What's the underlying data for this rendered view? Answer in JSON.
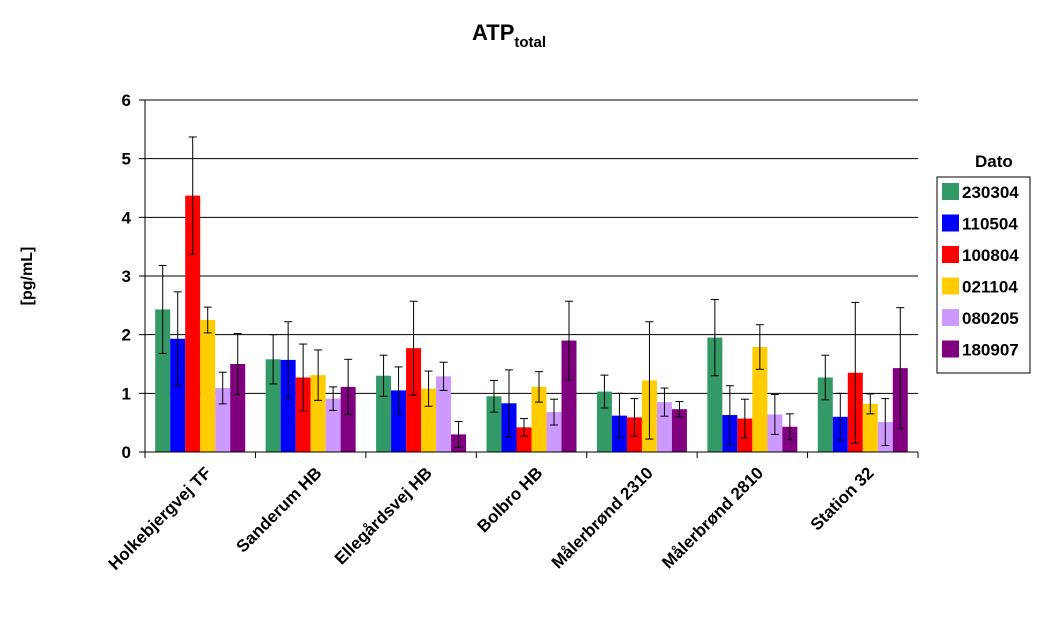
{
  "chart_data": {
    "type": "bar",
    "title": "ATP",
    "title_subscript": "total",
    "ylabel": "[pg/mL]",
    "xlabel": "",
    "ylim": [
      0,
      6
    ],
    "yticks": [
      "0",
      "1",
      "2",
      "3",
      "4",
      "5",
      "6"
    ],
    "grid": "horizontal",
    "legend_title": "Dato",
    "legend_position": "right",
    "error_bars": true,
    "categories": [
      "Holkebjergvej TF",
      "Sanderum HB",
      "Ellegårdsvej HB",
      "Bolbro HB",
      "Målerbrønd 2310",
      "Målerbrønd 2810",
      "Station 32"
    ],
    "series": [
      {
        "name": "230304",
        "color": "#339966",
        "values": [
          2.43,
          1.58,
          1.3,
          0.95,
          1.03,
          1.95,
          1.27
        ],
        "errors": [
          0.75,
          0.42,
          0.35,
          0.27,
          0.28,
          0.65,
          0.38
        ]
      },
      {
        "name": "110504",
        "color": "#0000ff",
        "values": [
          1.93,
          1.57,
          1.05,
          0.83,
          0.62,
          0.63,
          0.6
        ],
        "errors": [
          0.8,
          0.65,
          0.4,
          0.57,
          0.38,
          0.5,
          0.4
        ]
      },
      {
        "name": "100804",
        "color": "#ff0000",
        "values": [
          4.37,
          1.27,
          1.77,
          0.42,
          0.59,
          0.57,
          1.35
        ],
        "errors": [
          1.0,
          0.57,
          0.8,
          0.15,
          0.32,
          0.33,
          1.2
        ]
      },
      {
        "name": "021104",
        "color": "#ffcc00",
        "values": [
          2.25,
          1.31,
          1.08,
          1.11,
          1.22,
          1.79,
          0.82
        ],
        "errors": [
          0.22,
          0.43,
          0.3,
          0.26,
          1.0,
          0.38,
          0.17
        ]
      },
      {
        "name": "080205",
        "color": "#cc99ff",
        "values": [
          1.09,
          0.91,
          1.29,
          0.68,
          0.85,
          0.64,
          0.51
        ],
        "errors": [
          0.27,
          0.2,
          0.24,
          0.22,
          0.24,
          0.34,
          0.4
        ]
      },
      {
        "name": "180907",
        "color": "#800080",
        "values": [
          1.5,
          1.11,
          0.3,
          1.9,
          0.73,
          0.43,
          1.43
        ],
        "errors": [
          0.52,
          0.47,
          0.22,
          0.67,
          0.13,
          0.22,
          1.03
        ]
      }
    ]
  }
}
